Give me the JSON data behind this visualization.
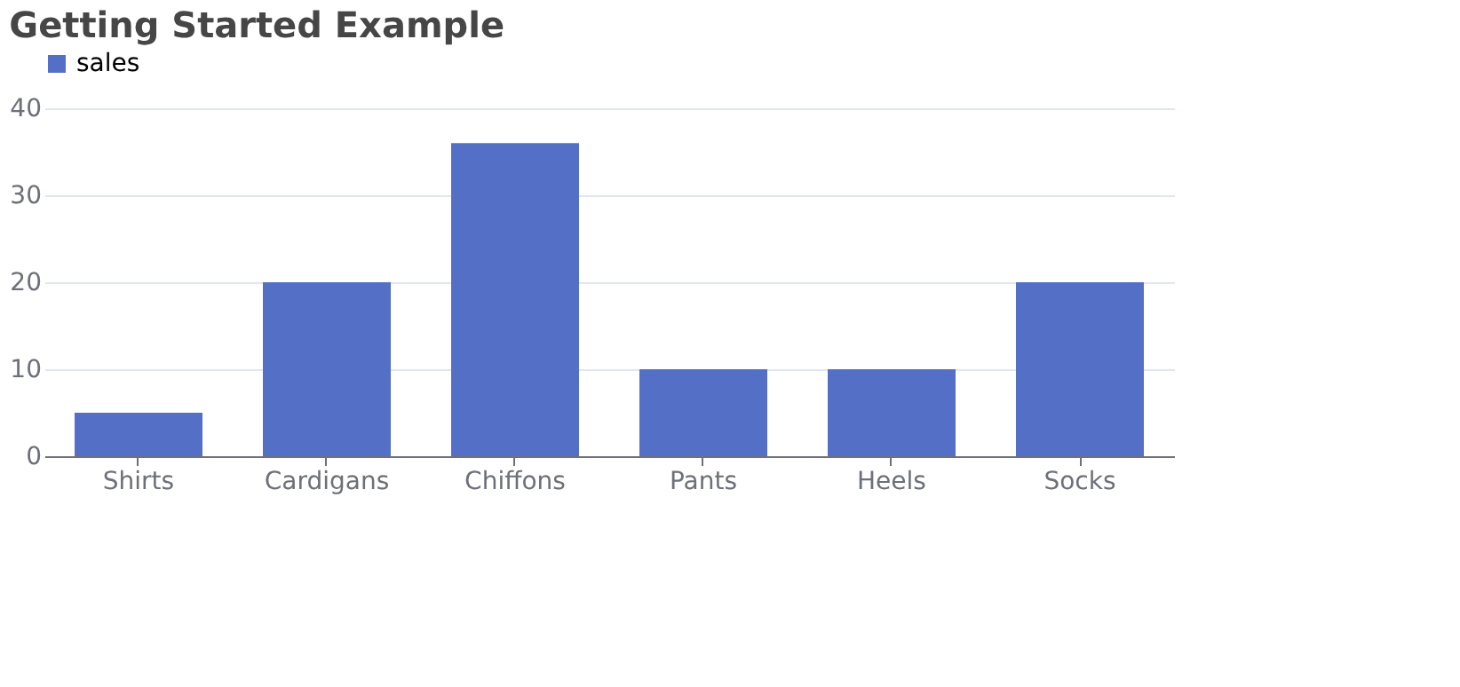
{
  "chart_data": {
    "type": "bar",
    "title": "Getting Started Example",
    "categories": [
      "Shirts",
      "Cardigans",
      "Chiffons",
      "Pants",
      "Heels",
      "Socks"
    ],
    "series": [
      {
        "name": "sales",
        "color": "#5470c6",
        "values": [
          5,
          20,
          36,
          10,
          10,
          20
        ]
      }
    ],
    "ylim": [
      0,
      40
    ],
    "yticks": [
      0,
      10,
      20,
      30,
      40
    ],
    "grid": "y",
    "legend": "top"
  }
}
